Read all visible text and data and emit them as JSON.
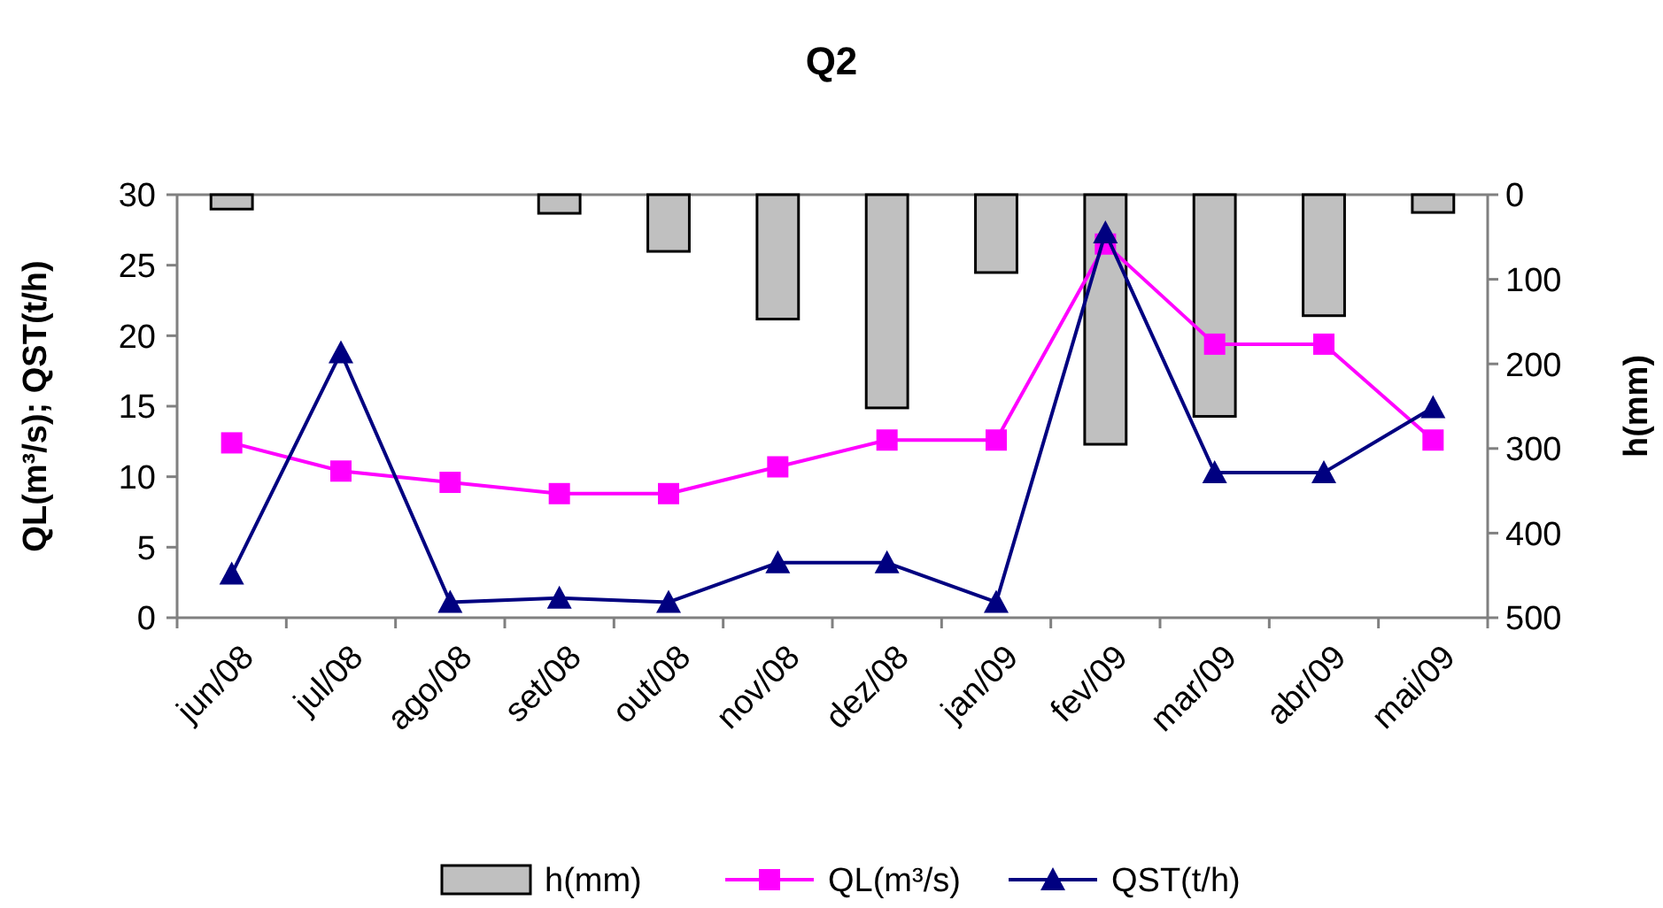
{
  "chart_data": {
    "type": "line",
    "title": "Q2",
    "ylabel": "QL(m³/s); QST(t/h)",
    "y2label": "h(mm)",
    "categories": [
      "jun/08",
      "jul/08",
      "ago/08",
      "set/08",
      "out/08",
      "nov/08",
      "dez/08",
      "jan/09",
      "fev/09",
      "mar/09",
      "abr/09",
      "mai/09"
    ],
    "series": [
      {
        "name": "h(mm)",
        "type": "bar",
        "axis": "y2",
        "color": "#c0c0c0",
        "values": [
          17,
          0,
          0,
          22,
          67,
          147,
          252,
          92,
          295,
          262,
          143,
          21
        ]
      },
      {
        "name": "QL(m³/s)",
        "color": "#ff00ff",
        "marker": "square",
        "values": [
          12.4,
          10.4,
          9.6,
          8.8,
          8.8,
          10.7,
          12.6,
          12.6,
          26.5,
          19.4,
          19.4,
          12.6
        ]
      },
      {
        "name": "QST(t/h)",
        "color": "#000080",
        "marker": "triangle",
        "values": [
          3.1,
          18.8,
          1.1,
          1.4,
          1.1,
          3.9,
          3.9,
          1.1,
          27.3,
          10.3,
          10.3,
          14.9
        ]
      }
    ],
    "ylim": [
      0,
      30
    ],
    "yticks": [
      0,
      5,
      10,
      15,
      20,
      25,
      30
    ],
    "y2lim": [
      500,
      0
    ],
    "y2ticks": [
      0,
      100,
      200,
      300,
      400,
      500
    ],
    "grid": false,
    "legend": "bottom"
  }
}
